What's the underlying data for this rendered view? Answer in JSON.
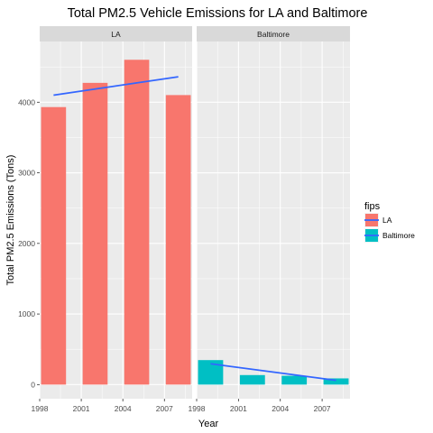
{
  "chart_data": {
    "type": "bar",
    "title": "Total PM2.5 Vehicle Emissions for LA and Baltimore",
    "xlabel": "Year",
    "ylabel": "Total PM2.5 Emissions (Tons)",
    "x_ticks": [
      "1998",
      "2001",
      "2004",
      "2007"
    ],
    "y_ticks": [
      "0",
      "1000",
      "2000",
      "3000",
      "4000"
    ],
    "x_range": [
      1998,
      2009
    ],
    "ylim": [
      -200,
      4860
    ],
    "grid": true,
    "legend": {
      "title": "fips",
      "placement": "right",
      "entries": [
        {
          "label": "LA",
          "color": "#F8766D"
        },
        {
          "label": "Baltimore",
          "color": "#00BFC4"
        }
      ]
    },
    "trend_line_color": "#3366FF",
    "facets": [
      {
        "label": "LA",
        "color": "#F8766D",
        "x": [
          1999,
          2002,
          2005,
          2008
        ],
        "values": [
          3931,
          4274,
          4601,
          4101
        ],
        "trend": {
          "x": [
            1999,
            2008
          ],
          "y": [
            4100,
            4360
          ]
        }
      },
      {
        "label": "Baltimore",
        "color": "#00BFC4",
        "x": [
          1999,
          2002,
          2005,
          2008
        ],
        "values": [
          347,
          135,
          125,
          88
        ],
        "trend": {
          "x": [
            1999,
            2008
          ],
          "y": [
            295,
            60
          ]
        }
      }
    ]
  }
}
